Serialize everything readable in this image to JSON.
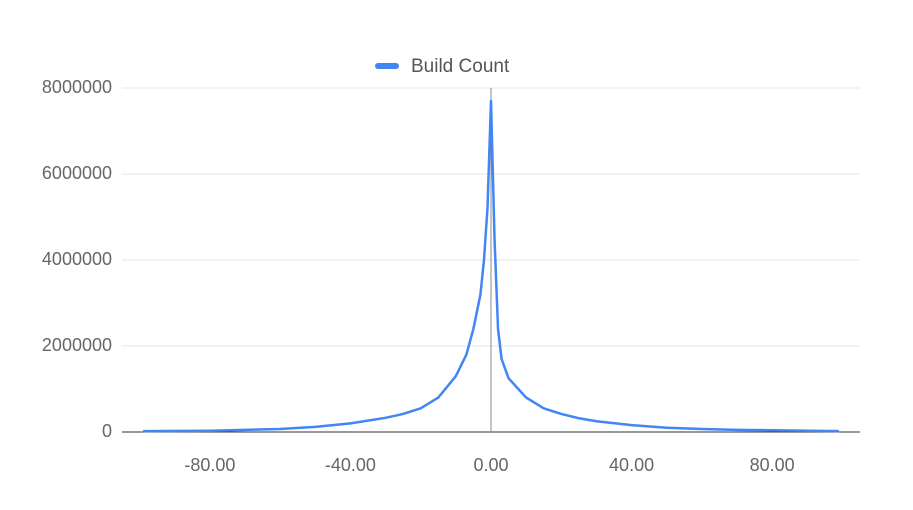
{
  "chart_data": {
    "type": "line",
    "x": [
      -99,
      -80,
      -70,
      -60,
      -50,
      -40,
      -30,
      -25,
      -20,
      -15,
      -10,
      -7,
      -5,
      -3,
      -2,
      -1,
      0,
      1,
      2,
      3,
      5,
      10,
      15,
      20,
      25,
      30,
      40,
      50,
      60,
      70,
      80,
      99
    ],
    "series": [
      {
        "name": "Build Count",
        "color": "#4285f4",
        "values": [
          20000,
          30000,
          50000,
          70000,
          120000,
          200000,
          330000,
          420000,
          550000,
          800000,
          1300000,
          1800000,
          2400000,
          3200000,
          4000000,
          5200000,
          7700000,
          4500000,
          2400000,
          1700000,
          1250000,
          800000,
          550000,
          420000,
          320000,
          250000,
          160000,
          100000,
          70000,
          50000,
          40000,
          20000
        ]
      }
    ],
    "xlim": [
      -105,
      105
    ],
    "xticks": [
      {
        "value": -80,
        "label": "-80.00"
      },
      {
        "value": -40,
        "label": "-40.00"
      },
      {
        "value": 0,
        "label": "0.00"
      },
      {
        "value": 40,
        "label": "40.00"
      },
      {
        "value": 80,
        "label": "80.00"
      }
    ],
    "ylim": [
      0,
      8000000
    ],
    "yticks": [
      0,
      2000000,
      4000000,
      6000000,
      8000000
    ],
    "grid": true,
    "legend": "top"
  }
}
